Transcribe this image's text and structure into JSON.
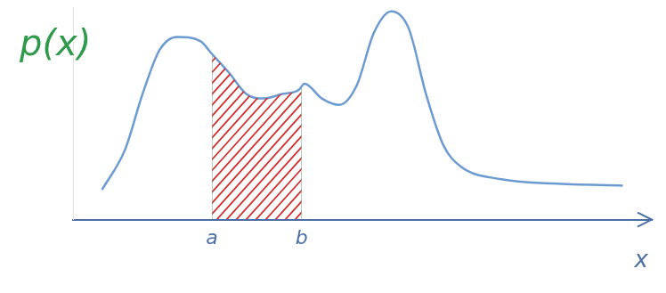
{
  "chart_data": {
    "type": "line",
    "y_label": "p(x)",
    "x_label": "x",
    "x": [
      0.5,
      0.9,
      1.2,
      1.5,
      1.8,
      2.2,
      2.4,
      2.7,
      3.0,
      3.3,
      3.6,
      3.9,
      4.0,
      4.3,
      4.6,
      4.9,
      5.2,
      5.5,
      5.8,
      6.1,
      6.4,
      6.7,
      7.4,
      8.3,
      9.5
    ],
    "values": [
      1.4,
      3.3,
      5.9,
      8.0,
      8.6,
      8.4,
      7.8,
      6.9,
      5.9,
      5.7,
      5.9,
      6.1,
      6.4,
      5.7,
      5.4,
      6.3,
      8.8,
      9.8,
      9.0,
      5.9,
      3.5,
      2.5,
      1.9,
      1.7,
      1.6
    ],
    "color": "#6b9bd1",
    "xlim": [
      0,
      10
    ],
    "ylim": [
      0,
      10
    ],
    "xticks": [
      {
        "value": 2.4,
        "label": "a"
      },
      {
        "value": 3.95,
        "label": "b"
      }
    ],
    "tick_labels": "x",
    "grid": false,
    "shaded": {
      "from": 2.4,
      "to": 3.95,
      "color": "#d03030"
    }
  }
}
